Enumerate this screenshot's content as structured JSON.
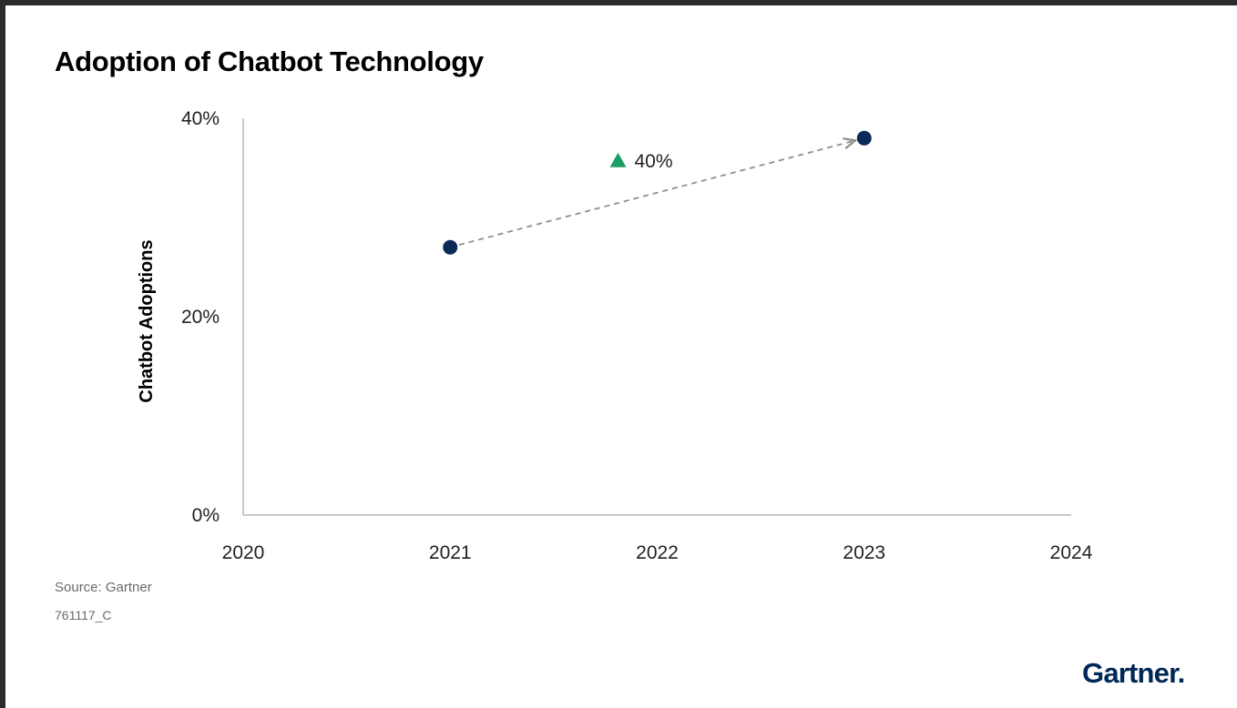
{
  "title": "Adoption of Chatbot Technology",
  "source": "Source: Gartner",
  "code": "761117_C",
  "logo": "Gartner",
  "logo_dot": ".",
  "colors": {
    "point": "#0b2a57",
    "axis": "#c9c9c9",
    "arrow": "#8f8f8f",
    "triangle": "#1b9e63",
    "text": "#222222"
  },
  "chart_data": {
    "type": "scatter",
    "title": "Adoption of Chatbot Technology",
    "xlabel": "",
    "ylabel": "Chatbot Adoptions",
    "xlim": [
      2020,
      2024
    ],
    "ylim": [
      0,
      40
    ],
    "x_ticks": [
      "2020",
      "2021",
      "2022",
      "2023",
      "2024"
    ],
    "y_ticks": [
      "0%",
      "20%",
      "40%"
    ],
    "x_tick_values": [
      2020,
      2021,
      2022,
      2023,
      2024
    ],
    "y_tick_values": [
      0,
      20,
      40
    ],
    "series": [
      {
        "x": [
          2021,
          2023
        ],
        "y": [
          27,
          38
        ]
      }
    ],
    "annotation": {
      "text": "40%",
      "symbol": "up-triangle",
      "from": [
        2021,
        27
      ],
      "to": [
        2023,
        38
      ]
    },
    "grid": false,
    "legend": "none"
  }
}
